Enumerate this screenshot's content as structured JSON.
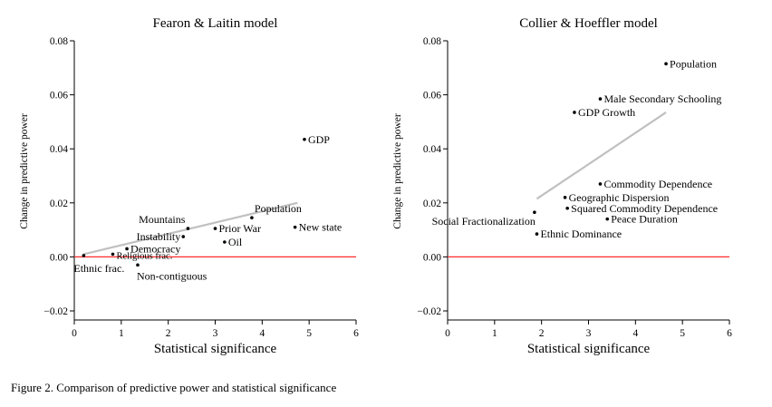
{
  "caption": "Figure 2. Comparison of predictive power and statistical significance",
  "chart_data": [
    {
      "type": "scatter",
      "title": "Fearon & Laitin model",
      "xlabel": "Statistical significance",
      "ylabel": "Change in predictive power",
      "xlim": [
        0,
        6
      ],
      "ylim": [
        -0.02,
        0.08
      ],
      "xticks": [
        "0",
        "1",
        "2",
        "3",
        "4",
        "5",
        "6"
      ],
      "yticks": [
        "−0.02",
        "0.00",
        "0.02",
        "0.04",
        "0.06",
        "0.08"
      ],
      "reference_line": {
        "y": 0.0,
        "color": "#ff2a2a"
      },
      "trend_line": {
        "x": [
          0.2,
          4.75
        ],
        "y": [
          0.001,
          0.02
        ],
        "color": "#c0c0c0"
      },
      "points": [
        {
          "label": "Ethnic frac.",
          "x": 0.2,
          "y": 0.0005,
          "anchor": "below-right"
        },
        {
          "label": "Religious frac.",
          "x": 0.82,
          "y": 0.001,
          "anchor": "right-small"
        },
        {
          "label": "Democracy",
          "x": 1.12,
          "y": 0.003,
          "anchor": "right"
        },
        {
          "label": "Non-contiguous",
          "x": 1.35,
          "y": -0.003,
          "anchor": "below-right"
        },
        {
          "label": "Instability",
          "x": 2.32,
          "y": 0.0075,
          "anchor": "left"
        },
        {
          "label": "Mountains",
          "x": 2.42,
          "y": 0.0105,
          "anchor": "above-left"
        },
        {
          "label": "Prior War",
          "x": 3.0,
          "y": 0.0105,
          "anchor": "right"
        },
        {
          "label": "Oil",
          "x": 3.2,
          "y": 0.0055,
          "anchor": "right"
        },
        {
          "label": "Population",
          "x": 3.78,
          "y": 0.0145,
          "anchor": "above-right"
        },
        {
          "label": "New state",
          "x": 4.7,
          "y": 0.011,
          "anchor": "right"
        },
        {
          "label": "GDP",
          "x": 4.9,
          "y": 0.0435,
          "anchor": "right"
        }
      ]
    },
    {
      "type": "scatter",
      "title": "Collier & Hoeffler model",
      "xlabel": "Statistical significance",
      "ylabel": "Change in predictive power",
      "xlim": [
        0,
        6
      ],
      "ylim": [
        -0.02,
        0.08
      ],
      "xticks": [
        "0",
        "1",
        "2",
        "3",
        "4",
        "5",
        "6"
      ],
      "yticks": [
        "−0.02",
        "0.00",
        "0.02",
        "0.04",
        "0.06",
        "0.08"
      ],
      "reference_line": {
        "y": 0.0,
        "color": "#ff2a2a"
      },
      "trend_line": {
        "x": [
          1.9,
          4.65
        ],
        "y": [
          0.0215,
          0.0535
        ],
        "color": "#c0c0c0"
      },
      "points": [
        {
          "label": "Population",
          "x": 4.65,
          "y": 0.0715,
          "anchor": "right"
        },
        {
          "label": "Male Secondary Schooling",
          "x": 3.25,
          "y": 0.0585,
          "anchor": "right"
        },
        {
          "label": "GDP Growth",
          "x": 2.7,
          "y": 0.0535,
          "anchor": "right"
        },
        {
          "label": "Commodity Dependence",
          "x": 3.25,
          "y": 0.027,
          "anchor": "right"
        },
        {
          "label": "Geographic Dispersion",
          "x": 2.5,
          "y": 0.022,
          "anchor": "right"
        },
        {
          "label": "Squared Commodity Dependence",
          "x": 2.55,
          "y": 0.018,
          "anchor": "right"
        },
        {
          "label": "Social Fractionalization",
          "x": 1.85,
          "y": 0.0165,
          "anchor": "below-left"
        },
        {
          "label": "Peace Duration",
          "x": 3.4,
          "y": 0.014,
          "anchor": "right"
        },
        {
          "label": "Ethnic Dominance",
          "x": 1.9,
          "y": 0.0085,
          "anchor": "right"
        }
      ]
    }
  ]
}
